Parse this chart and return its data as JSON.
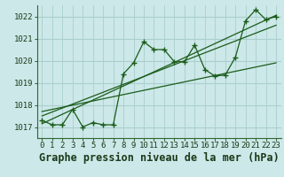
{
  "title": "Graphe pression niveau de la mer (hPa)",
  "bg_color": "#cce8e8",
  "grid_color": "#aacece",
  "line_color": "#1a5c1a",
  "x_ticks": [
    0,
    1,
    2,
    3,
    4,
    5,
    6,
    7,
    8,
    9,
    10,
    11,
    12,
    13,
    14,
    15,
    16,
    17,
    18,
    19,
    20,
    21,
    22,
    23
  ],
  "ylim": [
    1016.5,
    1022.5
  ],
  "yticks": [
    1017,
    1018,
    1019,
    1020,
    1021,
    1022
  ],
  "data_line": [
    1017.3,
    1017.1,
    1017.1,
    1017.8,
    1017.0,
    1017.2,
    1017.1,
    1017.1,
    1019.4,
    1019.9,
    1020.85,
    1020.5,
    1020.5,
    1019.95,
    1019.95,
    1020.7,
    1019.6,
    1019.3,
    1019.35,
    1020.15,
    1021.8,
    1022.3,
    1021.85,
    1022.0
  ],
  "trend_line1_x": [
    0,
    23
  ],
  "trend_line1_y": [
    1017.15,
    1022.05
  ],
  "trend_line2_x": [
    0,
    23
  ],
  "trend_line2_y": [
    1017.5,
    1021.6
  ],
  "trend_line3_x": [
    0,
    23
  ],
  "trend_line3_y": [
    1017.7,
    1019.9
  ],
  "title_fontsize": 8.5,
  "tick_fontsize": 6.5
}
